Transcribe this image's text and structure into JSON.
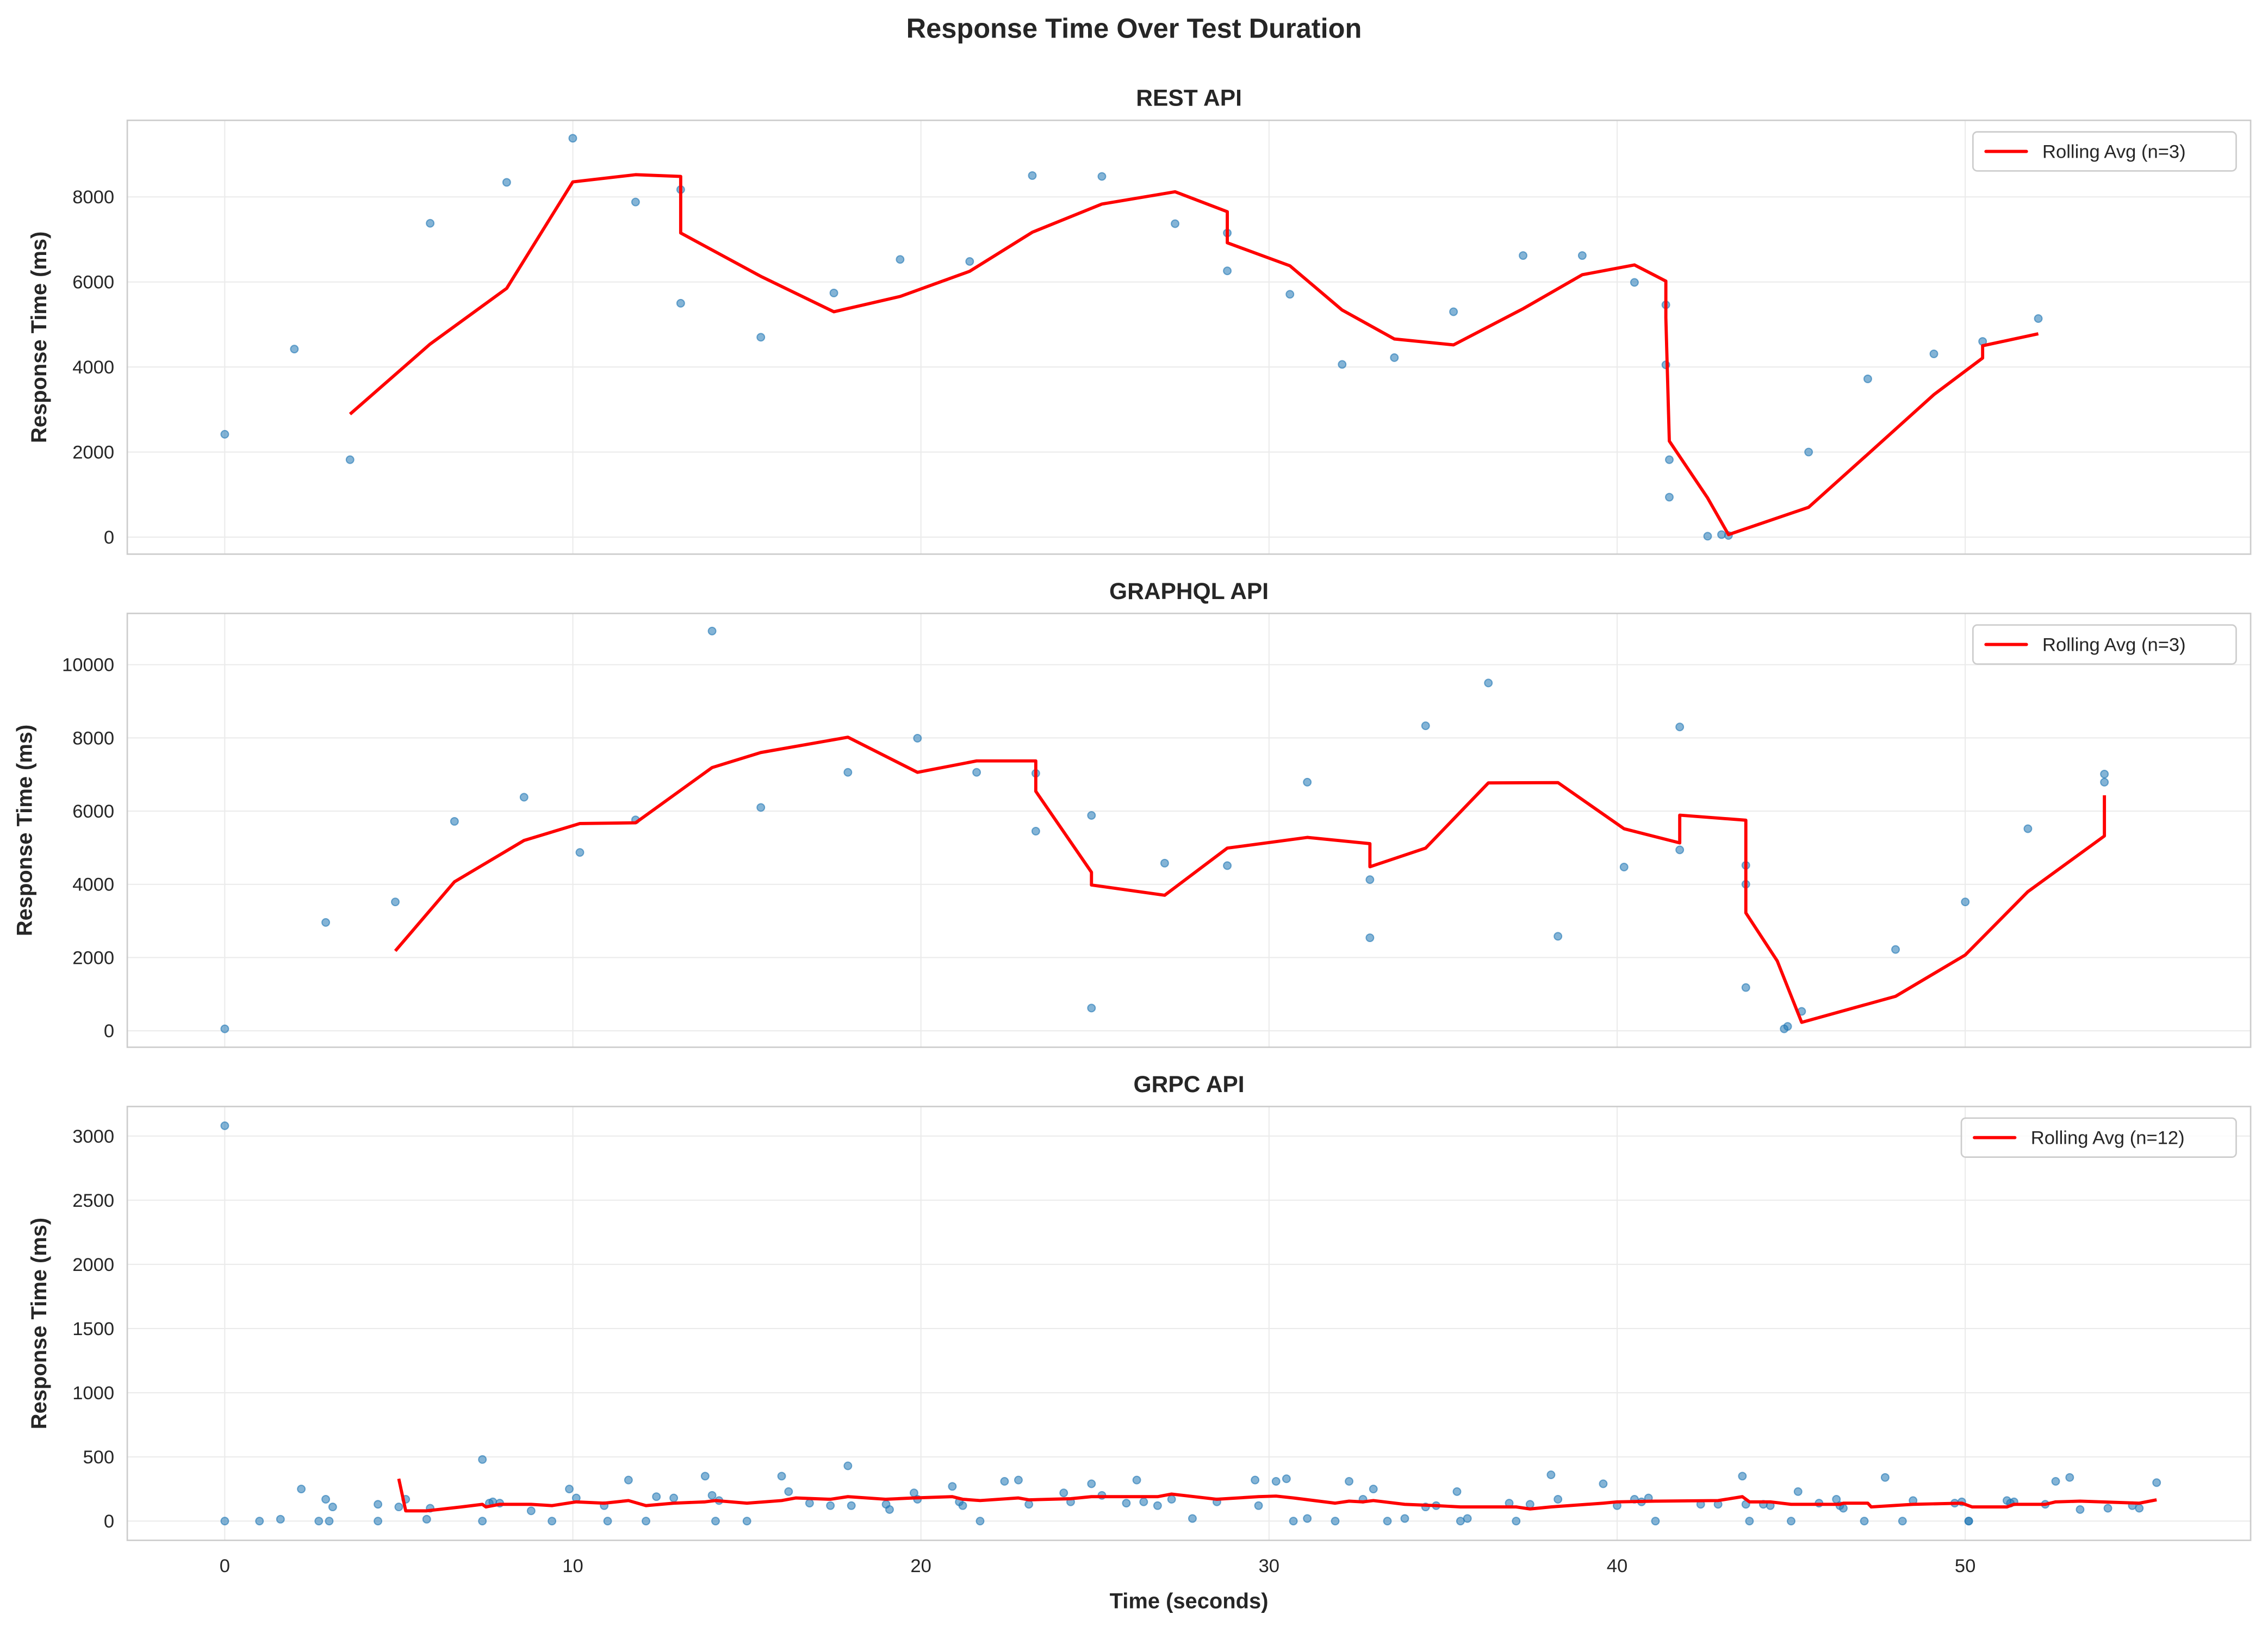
{
  "figure": {
    "suptitle": "Response Time Over Test Duration",
    "xlabel": "Time (seconds)",
    "x_ticks": [
      0,
      10,
      20,
      30,
      40,
      50
    ],
    "xlim": [
      -2.8,
      58.2
    ]
  },
  "colors": {
    "scatter": "#1f77b4",
    "rolling": "#ff0000",
    "grid": "#ebebeb",
    "spine": "#cccccc",
    "text": "#262626"
  },
  "chart_data": [
    {
      "type": "scatter",
      "title": "REST API",
      "ylabel": "Response Time (ms)",
      "xlabel": "",
      "ylim": [
        -400,
        9800
      ],
      "y_ticks": [
        0,
        2000,
        4000,
        6000,
        8000
      ],
      "legend": "Rolling Avg (n=3)",
      "legend_position": "upper right",
      "grid": true,
      "points": [
        [
          0.0,
          2420
        ],
        [
          2.0,
          4420
        ],
        [
          3.6,
          1820
        ],
        [
          5.9,
          7380
        ],
        [
          8.1,
          8340
        ],
        [
          10.0,
          9380
        ],
        [
          11.8,
          7880
        ],
        [
          13.1,
          8170
        ],
        [
          13.1,
          5500
        ],
        [
          15.4,
          4700
        ],
        [
          17.5,
          5740
        ],
        [
          19.4,
          6530
        ],
        [
          21.4,
          6480
        ],
        [
          23.2,
          8500
        ],
        [
          25.2,
          8480
        ],
        [
          27.3,
          7370
        ],
        [
          28.8,
          7150
        ],
        [
          28.8,
          6260
        ],
        [
          30.6,
          5710
        ],
        [
          32.1,
          4060
        ],
        [
          33.6,
          4220
        ],
        [
          35.3,
          5300
        ],
        [
          37.3,
          6620
        ],
        [
          39.0,
          6620
        ],
        [
          40.5,
          5990
        ],
        [
          41.4,
          5460
        ],
        [
          41.4,
          4050
        ],
        [
          41.5,
          1820
        ],
        [
          41.5,
          940
        ],
        [
          42.6,
          20
        ],
        [
          43.0,
          60
        ],
        [
          43.2,
          40
        ],
        [
          45.5,
          2000
        ],
        [
          47.2,
          3720
        ],
        [
          49.1,
          4310
        ],
        [
          50.5,
          4600
        ],
        [
          52.1,
          5140
        ]
      ],
      "rolling_avg": [
        [
          3.6,
          2890
        ],
        [
          5.9,
          4540
        ],
        [
          8.1,
          5850
        ],
        [
          10.0,
          8350
        ],
        [
          11.8,
          8520
        ],
        [
          13.1,
          8480
        ],
        [
          13.1,
          7150
        ],
        [
          15.4,
          6130
        ],
        [
          17.5,
          5300
        ],
        [
          19.4,
          5660
        ],
        [
          21.4,
          6250
        ],
        [
          23.2,
          7170
        ],
        [
          25.2,
          7830
        ],
        [
          27.3,
          8120
        ],
        [
          28.8,
          7650
        ],
        [
          28.8,
          6920
        ],
        [
          30.6,
          6380
        ],
        [
          32.1,
          5340
        ],
        [
          33.6,
          4660
        ],
        [
          35.3,
          4520
        ],
        [
          37.3,
          5370
        ],
        [
          39.0,
          6170
        ],
        [
          40.5,
          6400
        ],
        [
          41.4,
          6020
        ],
        [
          41.4,
          5160
        ],
        [
          41.5,
          2260
        ],
        [
          42.6,
          920
        ],
        [
          43.2,
          60
        ],
        [
          45.5,
          700
        ],
        [
          47.2,
          1950
        ],
        [
          49.1,
          3350
        ],
        [
          50.5,
          4210
        ],
        [
          50.5,
          4500
        ],
        [
          52.1,
          4780
        ]
      ]
    },
    {
      "type": "scatter",
      "title": "GRAPHQL API",
      "ylabel": "Response Time (ms)",
      "xlabel": "",
      "ylim": [
        -450,
        11400
      ],
      "y_ticks": [
        0,
        2000,
        4000,
        6000,
        8000,
        10000
      ],
      "legend": "Rolling Avg (n=3)",
      "legend_position": "upper right",
      "grid": true,
      "points": [
        [
          0.0,
          50
        ],
        [
          2.9,
          2960
        ],
        [
          4.9,
          3520
        ],
        [
          6.6,
          5720
        ],
        [
          8.6,
          6380
        ],
        [
          10.2,
          4870
        ],
        [
          11.8,
          5760
        ],
        [
          14.0,
          10920
        ],
        [
          15.4,
          6100
        ],
        [
          17.9,
          7060
        ],
        [
          19.9,
          7990
        ],
        [
          21.6,
          7060
        ],
        [
          23.3,
          7030
        ],
        [
          23.3,
          5450
        ],
        [
          24.9,
          5880
        ],
        [
          24.9,
          620
        ],
        [
          27.0,
          4580
        ],
        [
          28.8,
          4510
        ],
        [
          31.1,
          6790
        ],
        [
          32.9,
          2540
        ],
        [
          32.9,
          4130
        ],
        [
          34.5,
          8330
        ],
        [
          36.3,
          9500
        ],
        [
          38.3,
          2580
        ],
        [
          40.2,
          4470
        ],
        [
          41.8,
          8300
        ],
        [
          41.8,
          4940
        ],
        [
          43.7,
          4520
        ],
        [
          43.7,
          4000
        ],
        [
          43.7,
          1180
        ],
        [
          44.8,
          50
        ],
        [
          44.9,
          120
        ],
        [
          45.3,
          530
        ],
        [
          48.0,
          2220
        ],
        [
          50.0,
          3520
        ],
        [
          51.8,
          5520
        ],
        [
          54.0,
          7010
        ],
        [
          54.0,
          6790
        ]
      ],
      "rolling_avg": [
        [
          4.9,
          2180
        ],
        [
          6.6,
          4070
        ],
        [
          8.6,
          5200
        ],
        [
          10.2,
          5660
        ],
        [
          11.8,
          5680
        ],
        [
          14.0,
          7190
        ],
        [
          15.4,
          7600
        ],
        [
          17.9,
          8020
        ],
        [
          19.9,
          7060
        ],
        [
          21.6,
          7370
        ],
        [
          23.3,
          7370
        ],
        [
          23.3,
          6540
        ],
        [
          24.9,
          4330
        ],
        [
          24.9,
          3980
        ],
        [
          27.0,
          3700
        ],
        [
          28.8,
          4990
        ],
        [
          31.1,
          5280
        ],
        [
          32.9,
          5110
        ],
        [
          32.9,
          4480
        ],
        [
          34.5,
          4990
        ],
        [
          36.3,
          6770
        ],
        [
          38.3,
          6780
        ],
        [
          40.2,
          5520
        ],
        [
          41.8,
          5130
        ],
        [
          41.8,
          5890
        ],
        [
          43.7,
          5750
        ],
        [
          43.7,
          3220
        ],
        [
          44.6,
          1910
        ],
        [
          45.3,
          230
        ],
        [
          48.0,
          940
        ],
        [
          50.0,
          2070
        ],
        [
          51.8,
          3800
        ],
        [
          54.0,
          5320
        ],
        [
          54.0,
          6430
        ]
      ]
    },
    {
      "type": "scatter",
      "title": "GRPC API",
      "ylabel": "Response Time (ms)",
      "xlabel": "Time (seconds)",
      "ylim": [
        -150,
        3230
      ],
      "y_ticks": [
        0,
        500,
        1000,
        1500,
        2000,
        2500,
        3000
      ],
      "legend": "Rolling Avg (n=12)",
      "legend_position": "upper right",
      "grid": true,
      "points": [
        [
          0.0,
          3080
        ],
        [
          0.0,
          0
        ],
        [
          1.0,
          0
        ],
        [
          1.6,
          15
        ],
        [
          2.2,
          250
        ],
        [
          2.7,
          0
        ],
        [
          2.9,
          170
        ],
        [
          3.0,
          0
        ],
        [
          3.1,
          110
        ],
        [
          4.4,
          130
        ],
        [
          4.4,
          0
        ],
        [
          5.0,
          110
        ],
        [
          5.2,
          170
        ],
        [
          5.8,
          15
        ],
        [
          5.9,
          100
        ],
        [
          7.4,
          480
        ],
        [
          7.4,
          0
        ],
        [
          7.6,
          140
        ],
        [
          7.7,
          150
        ],
        [
          7.9,
          140
        ],
        [
          8.8,
          80
        ],
        [
          9.4,
          0
        ],
        [
          9.9,
          250
        ],
        [
          10.1,
          180
        ],
        [
          10.9,
          120
        ],
        [
          11.0,
          0
        ],
        [
          11.6,
          320
        ],
        [
          12.1,
          0
        ],
        [
          12.4,
          190
        ],
        [
          12.9,
          180
        ],
        [
          13.8,
          350
        ],
        [
          14.0,
          200
        ],
        [
          14.1,
          0
        ],
        [
          14.2,
          160
        ],
        [
          15.0,
          0
        ],
        [
          16.0,
          350
        ],
        [
          16.2,
          230
        ],
        [
          16.8,
          140
        ],
        [
          17.4,
          120
        ],
        [
          17.9,
          430
        ],
        [
          18.0,
          120
        ],
        [
          19.0,
          130
        ],
        [
          19.1,
          90
        ],
        [
          19.8,
          220
        ],
        [
          19.9,
          170
        ],
        [
          20.9,
          270
        ],
        [
          21.1,
          150
        ],
        [
          21.2,
          120
        ],
        [
          21.7,
          0
        ],
        [
          22.4,
          310
        ],
        [
          22.8,
          320
        ],
        [
          23.1,
          130
        ],
        [
          24.1,
          220
        ],
        [
          24.3,
          150
        ],
        [
          24.9,
          290
        ],
        [
          25.2,
          200
        ],
        [
          25.9,
          140
        ],
        [
          26.2,
          320
        ],
        [
          26.4,
          150
        ],
        [
          26.8,
          120
        ],
        [
          27.2,
          170
        ],
        [
          27.8,
          20
        ],
        [
          28.5,
          150
        ],
        [
          29.6,
          320
        ],
        [
          29.7,
          120
        ],
        [
          30.2,
          310
        ],
        [
          30.5,
          330
        ],
        [
          30.7,
          0
        ],
        [
          31.1,
          20
        ],
        [
          31.9,
          0
        ],
        [
          32.3,
          310
        ],
        [
          32.7,
          170
        ],
        [
          33.0,
          250
        ],
        [
          33.4,
          0
        ],
        [
          33.9,
          20
        ],
        [
          34.5,
          110
        ],
        [
          34.8,
          120
        ],
        [
          35.4,
          230
        ],
        [
          35.5,
          0
        ],
        [
          35.7,
          20
        ],
        [
          36.9,
          140
        ],
        [
          37.1,
          0
        ],
        [
          37.5,
          130
        ],
        [
          38.1,
          360
        ],
        [
          38.3,
          170
        ],
        [
          39.6,
          290
        ],
        [
          40.0,
          120
        ],
        [
          40.5,
          170
        ],
        [
          40.7,
          150
        ],
        [
          40.9,
          180
        ],
        [
          41.1,
          0
        ],
        [
          42.4,
          130
        ],
        [
          42.9,
          130
        ],
        [
          43.6,
          350
        ],
        [
          43.7,
          130
        ],
        [
          43.8,
          0
        ],
        [
          44.2,
          130
        ],
        [
          44.4,
          120
        ],
        [
          45.0,
          0
        ],
        [
          45.2,
          230
        ],
        [
          45.8,
          140
        ],
        [
          46.3,
          170
        ],
        [
          46.4,
          120
        ],
        [
          46.5,
          100
        ],
        [
          47.1,
          0
        ],
        [
          47.7,
          340
        ],
        [
          48.2,
          0
        ],
        [
          48.5,
          160
        ],
        [
          49.7,
          140
        ],
        [
          49.9,
          150
        ],
        [
          50.1,
          0
        ],
        [
          50.1,
          0
        ],
        [
          51.2,
          160
        ],
        [
          51.3,
          140
        ],
        [
          51.4,
          150
        ],
        [
          52.3,
          130
        ],
        [
          52.6,
          310
        ],
        [
          53.0,
          340
        ],
        [
          53.3,
          90
        ],
        [
          54.1,
          100
        ],
        [
          54.8,
          120
        ],
        [
          55.0,
          100
        ],
        [
          55.5,
          300
        ]
      ],
      "rolling_avg": [
        [
          5.0,
          330
        ],
        [
          5.2,
          80
        ],
        [
          5.8,
          80
        ],
        [
          6.8,
          110
        ],
        [
          7.4,
          130
        ],
        [
          7.5,
          110
        ],
        [
          7.9,
          130
        ],
        [
          8.8,
          130
        ],
        [
          9.4,
          120
        ],
        [
          10.1,
          150
        ],
        [
          10.9,
          140
        ],
        [
          11.6,
          160
        ],
        [
          12.1,
          120
        ],
        [
          12.9,
          140
        ],
        [
          13.8,
          150
        ],
        [
          14.1,
          160
        ],
        [
          15.0,
          140
        ],
        [
          16.0,
          160
        ],
        [
          16.4,
          180
        ],
        [
          17.4,
          170
        ],
        [
          17.9,
          190
        ],
        [
          19.0,
          170
        ],
        [
          19.8,
          180
        ],
        [
          20.9,
          190
        ],
        [
          21.2,
          170
        ],
        [
          21.7,
          160
        ],
        [
          22.8,
          180
        ],
        [
          23.1,
          165
        ],
        [
          24.3,
          175
        ],
        [
          24.9,
          190
        ],
        [
          25.9,
          190
        ],
        [
          26.8,
          190
        ],
        [
          27.2,
          210
        ],
        [
          28.5,
          170
        ],
        [
          29.7,
          190
        ],
        [
          30.2,
          195
        ],
        [
          30.7,
          180
        ],
        [
          31.9,
          140
        ],
        [
          32.3,
          155
        ],
        [
          32.7,
          150
        ],
        [
          33.0,
          160
        ],
        [
          33.9,
          130
        ],
        [
          34.8,
          120
        ],
        [
          35.5,
          110
        ],
        [
          37.1,
          110
        ],
        [
          37.5,
          95
        ],
        [
          38.1,
          110
        ],
        [
          39.6,
          140
        ],
        [
          40.0,
          150
        ],
        [
          41.1,
          155
        ],
        [
          42.9,
          160
        ],
        [
          43.6,
          190
        ],
        [
          43.8,
          150
        ],
        [
          44.4,
          150
        ],
        [
          45.0,
          130
        ],
        [
          46.4,
          130
        ],
        [
          46.5,
          140
        ],
        [
          47.2,
          140
        ],
        [
          47.3,
          110
        ],
        [
          48.5,
          130
        ],
        [
          49.9,
          140
        ],
        [
          50.2,
          110
        ],
        [
          51.2,
          110
        ],
        [
          51.4,
          130
        ],
        [
          52.3,
          130
        ],
        [
          52.6,
          150
        ],
        [
          53.3,
          155
        ],
        [
          55.0,
          140
        ],
        [
          55.5,
          165
        ]
      ]
    }
  ]
}
